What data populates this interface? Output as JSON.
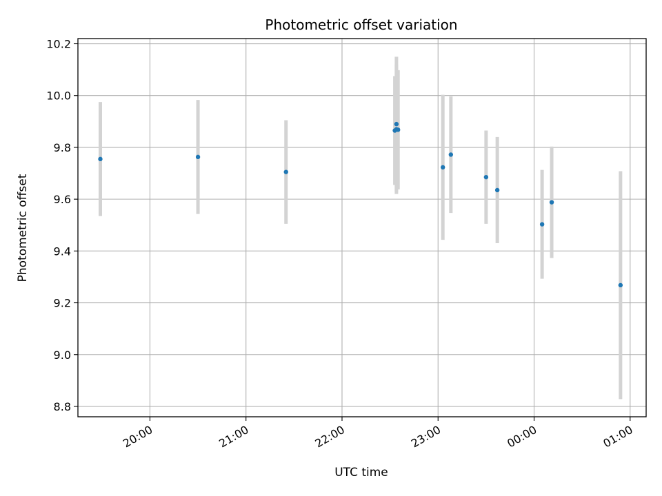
{
  "chart_data": {
    "type": "scatter",
    "title": "Photometric offset variation",
    "xlabel": "UTC time",
    "ylabel": "Photometric offset",
    "xlim": [
      "2000-01-01T19:15",
      "2000-01-02T01:10"
    ],
    "ylim": [
      8.76,
      10.22
    ],
    "xticks": [
      {
        "t": "2000-01-01T20:00",
        "label": "20:00"
      },
      {
        "t": "2000-01-01T21:00",
        "label": "21:00"
      },
      {
        "t": "2000-01-01T22:00",
        "label": "22:00"
      },
      {
        "t": "2000-01-01T23:00",
        "label": "23:00"
      },
      {
        "t": "2000-01-02T00:00",
        "label": "00:00"
      },
      {
        "t": "2000-01-02T01:00",
        "label": "01:00"
      }
    ],
    "yticks": [
      "8.8",
      "9.0",
      "9.2",
      "9.4",
      "9.6",
      "9.8",
      "10.0",
      "10.2"
    ],
    "grid": true,
    "x_tick_rotation": 30,
    "colors": {
      "marker": "#1f77b4",
      "errorbar": "#d3d3d3",
      "grid": "#b0b0b0"
    },
    "points": [
      {
        "t": "2000-01-01T19:29",
        "y": 9.755,
        "err": 0.22
      },
      {
        "t": "2000-01-01T20:30",
        "y": 9.763,
        "err": 0.22
      },
      {
        "t": "2000-01-01T21:25",
        "y": 9.705,
        "err": 0.2
      },
      {
        "t": "2000-01-01T22:33",
        "y": 9.865,
        "err": 0.21
      },
      {
        "t": "2000-01-01T22:34",
        "y": 9.89,
        "err": 0.26
      },
      {
        "t": "2000-01-01T22:34",
        "y": 9.87,
        "err": 0.25
      },
      {
        "t": "2000-01-01T22:35",
        "y": 9.868,
        "err": 0.23
      },
      {
        "t": "2000-01-01T23:03",
        "y": 9.723,
        "err": 0.28
      },
      {
        "t": "2000-01-01T23:08",
        "y": 9.772,
        "err": 0.225
      },
      {
        "t": "2000-01-01T23:30",
        "y": 9.685,
        "err": 0.18
      },
      {
        "t": "2000-01-01T23:37",
        "y": 9.635,
        "err": 0.205
      },
      {
        "t": "2000-01-02T00:05",
        "y": 9.503,
        "err": 0.21
      },
      {
        "t": "2000-01-02T00:11",
        "y": 9.588,
        "err": 0.215
      },
      {
        "t": "2000-01-02T00:54",
        "y": 9.268,
        "err": 0.44
      }
    ]
  }
}
